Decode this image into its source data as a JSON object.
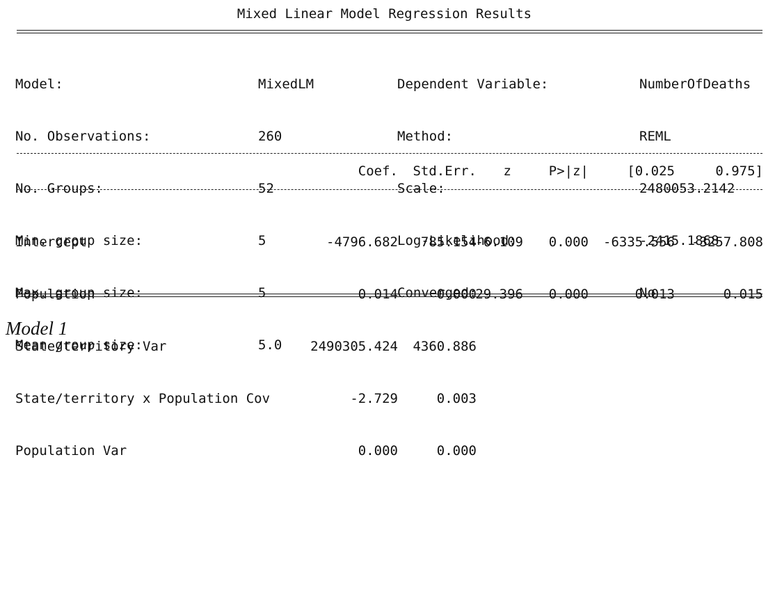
{
  "title": "Mixed Linear Model Regression Results",
  "summary": [
    [
      "Model:",
      "MixedLM",
      "Dependent Variable:",
      "NumberOfDeaths"
    ],
    [
      "No. Observations:",
      "260",
      "Method:",
      "REML"
    ],
    [
      "No. Groups:",
      "52",
      "Scale:",
      "2480053.2142"
    ],
    [
      "Min. group size:",
      "5",
      "Log-Likelihood:",
      "-2415.1868"
    ],
    [
      "Max. group size:",
      "5",
      "Converged:",
      "No"
    ],
    [
      "Mean group size:",
      "5.0",
      "",
      ""
    ]
  ],
  "coef_table": {
    "columns": [
      "Coef.",
      "Std.Err.",
      "z",
      "P>|z|",
      "[0.025",
      "0.975]"
    ],
    "rows": [
      {
        "name": "Intercept",
        "coef": "-4796.682",
        "se": "785.154",
        "z": "-6.109",
        "p": "0.000",
        "lo": "-6335.556",
        "hi": "-3257.808"
      },
      {
        "name": "Population",
        "coef": "0.014",
        "se": "0.000",
        "z": "29.396",
        "p": "0.000",
        "lo": "0.013",
        "hi": "0.015"
      },
      {
        "name": "State/territory Var",
        "coef": "2490305.424",
        "se": "4360.886",
        "z": "",
        "p": "",
        "lo": "",
        "hi": ""
      },
      {
        "name": "State/territory x Population Cov",
        "coef": "-2.729",
        "se": "0.003",
        "z": "",
        "p": "",
        "lo": "",
        "hi": ""
      },
      {
        "name": "Population Var",
        "coef": "0.000",
        "se": "0.000",
        "z": "",
        "p": "",
        "lo": "",
        "hi": ""
      }
    ]
  },
  "caption": "Model 1"
}
